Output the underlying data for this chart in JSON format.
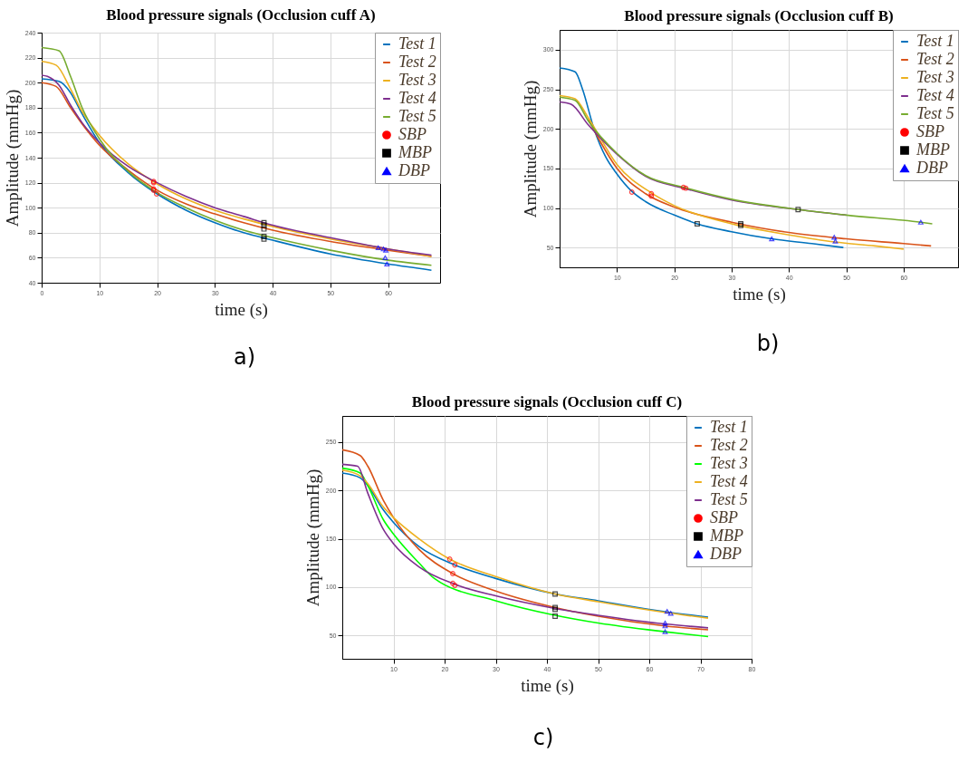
{
  "chart_data": [
    {
      "type": "line",
      "title": "Blood pressure signals (Occlusion cuff A)",
      "xlabel": "time (s)",
      "ylabel": "Amplitude (mmHg)",
      "xlim": [
        0,
        69
      ],
      "xticks": [
        0,
        10,
        20,
        30,
        40,
        50,
        60
      ],
      "ylim": [
        40,
        240
      ],
      "yticks": [
        40,
        60,
        80,
        100,
        120,
        140,
        160,
        180,
        200,
        220,
        240
      ],
      "grid": true,
      "legend": "top right",
      "annotations": [
        "a)"
      ],
      "series": [
        {
          "name": "Test 1",
          "color": "#0072bd",
          "x": [
            0,
            3,
            5,
            7,
            10,
            15,
            20,
            25,
            30,
            35,
            40,
            50,
            60,
            67.5
          ],
          "values": [
            203,
            201,
            192,
            175,
            152,
            128,
            111,
            98,
            88,
            80,
            74,
            63,
            55,
            50
          ]
        },
        {
          "name": "Test 2",
          "color": "#d95319",
          "x": [
            0,
            2.5,
            5,
            7,
            10,
            15,
            20,
            25,
            30,
            35,
            40,
            50,
            60,
            67.5
          ],
          "values": [
            200,
            197,
            180,
            167,
            150,
            130,
            114,
            103,
            95,
            88,
            82,
            73,
            66,
            61
          ]
        },
        {
          "name": "Test 3",
          "color": "#edb120",
          "x": [
            0,
            2.5,
            5,
            7,
            10,
            15,
            20,
            25,
            30,
            35,
            40,
            50,
            60,
            67.5
          ],
          "values": [
            217,
            214,
            195,
            177,
            158,
            135,
            119,
            107,
            98,
            91,
            85,
            75,
            67,
            61
          ]
        },
        {
          "name": "Test 4",
          "color": "#7e2f8e",
          "x": [
            0,
            1,
            3,
            5,
            7,
            10,
            15,
            20,
            25,
            30,
            35,
            40,
            50,
            60,
            67.5
          ],
          "values": [
            206,
            205,
            198,
            182,
            168,
            152,
            133,
            120,
            109,
            100,
            93,
            86,
            76,
            67,
            62
          ]
        },
        {
          "name": "Test 5",
          "color": "#77ac30",
          "x": [
            0,
            3,
            5,
            7,
            10,
            15,
            20,
            25,
            30,
            35,
            40,
            50,
            60,
            67.5
          ],
          "values": [
            228,
            225.5,
            205,
            180,
            155,
            129,
            112,
            100,
            90,
            82,
            76,
            66,
            58,
            54
          ]
        },
        {
          "name": "SBP",
          "type": "scatter",
          "marker": "circle",
          "color": "#ff0000",
          "x": [
            19.4,
            19.4,
            19.4,
            19.4,
            19.9
          ],
          "values": [
            121,
            120,
            115,
            114,
            111
          ]
        },
        {
          "name": "MBP",
          "type": "scatter",
          "marker": "square",
          "color": "#000000",
          "x": [
            38.5,
            38.5,
            38.5,
            38.5,
            38.5
          ],
          "values": [
            88,
            86,
            83,
            77,
            75
          ]
        },
        {
          "name": "DBP",
          "type": "scatter",
          "marker": "triangle",
          "color": "#0000ff",
          "x": [
            58.3,
            59.2,
            59.6,
            59.5,
            59.8
          ],
          "values": [
            68,
            67,
            66,
            60,
            55
          ]
        }
      ]
    },
    {
      "type": "line",
      "title": "Blood pressure signals (Occlusion cuff B)",
      "xlabel": "time (s)",
      "ylabel": "Amplitude (mmHg)",
      "xlim": [
        0,
        69.5
      ],
      "xticks": [
        10,
        20,
        30,
        40,
        50,
        60
      ],
      "ylim": [
        25,
        325
      ],
      "yticks": [
        50,
        100,
        150,
        200,
        250,
        300
      ],
      "grid": true,
      "legend": "top right",
      "annotations": [
        "b)"
      ],
      "series": [
        {
          "name": "Test 1",
          "color": "#0072bd",
          "x": [
            0,
            2.7,
            4,
            6,
            8,
            10,
            12.6,
            15,
            20,
            24,
            30,
            37,
            44,
            49.5
          ],
          "values": [
            277,
            272,
            250,
            200,
            165,
            143,
            121,
            108,
            91,
            80,
            70,
            61,
            55,
            50
          ]
        },
        {
          "name": "Test 2",
          "color": "#d95319",
          "x": [
            5,
            7,
            10,
            15,
            20,
            30,
            40,
            50,
            60,
            64.8
          ],
          "values": [
            212,
            185,
            150,
            118,
            101,
            82,
            69,
            61,
            55,
            52
          ]
        },
        {
          "name": "Test 3",
          "color": "#edb120",
          "x": [
            0,
            2.7,
            5,
            10,
            16,
            20,
            30,
            40,
            48,
            55,
            60
          ],
          "values": [
            242,
            238,
            214,
            155,
            119,
            103,
            80,
            66,
            57,
            52,
            48
          ]
        },
        {
          "name": "Test 4",
          "color": "#7e2f8e",
          "x": [
            0,
            2,
            5,
            10,
            15,
            21.7,
            30,
            41.6,
            50
          ],
          "values": [
            234,
            231,
            205,
            168,
            140,
            125,
            110,
            98,
            91
          ]
        },
        {
          "name": "Test 5",
          "color": "#77ac30",
          "x": [
            0,
            2.7,
            5,
            10,
            15,
            21.7,
            30,
            41.6,
            50,
            63,
            65
          ],
          "values": [
            240,
            236,
            210,
            169,
            141,
            126,
            111,
            98,
            91,
            82,
            80
          ]
        },
        {
          "name": "SBP",
          "type": "scatter",
          "marker": "circle",
          "color": "#ff0000",
          "x": [
            12.6,
            16,
            16,
            21.6,
            22
          ],
          "values": [
            120,
            118,
            115,
            126,
            125
          ]
        },
        {
          "name": "MBP",
          "type": "scatter",
          "marker": "square",
          "color": "#000000",
          "x": [
            24,
            31.6,
            31.6,
            41.6
          ],
          "values": [
            80,
            80,
            78,
            98
          ]
        },
        {
          "name": "DBP",
          "type": "scatter",
          "marker": "triangle",
          "color": "#0000ff",
          "x": [
            37,
            47.9,
            48.1,
            63
          ],
          "values": [
            61,
            63,
            58,
            82
          ]
        }
      ]
    },
    {
      "type": "line",
      "title": "Blood pressure signals (Occlusion cuff C)",
      "xlabel": "time (s)",
      "ylabel": "Amplitude (mmHg)",
      "xlim": [
        0,
        80
      ],
      "xticks": [
        10,
        20,
        30,
        40,
        50,
        60,
        70,
        80
      ],
      "ylim": [
        26,
        277
      ],
      "yticks": [
        50,
        100,
        150,
        200,
        250
      ],
      "grid": true,
      "legend": "top right",
      "annotations": [
        "c)"
      ],
      "series": [
        {
          "name": "Test 1",
          "color": "#0072bd",
          "x": [
            0,
            3.5,
            5,
            8,
            10,
            15,
            22,
            30,
            41.6,
            50,
            60,
            64,
            71.5
          ],
          "values": [
            218,
            213,
            205,
            180,
            167,
            142,
            123,
            109,
            93,
            86,
            77,
            74,
            69
          ]
        },
        {
          "name": "Test 2",
          "color": "#d95319",
          "x": [
            0,
            3.5,
            5,
            8,
            10,
            15,
            21.6,
            30,
            41.6,
            50,
            63,
            71.5
          ],
          "values": [
            242,
            236,
            225,
            190,
            172,
            139,
            114,
            96,
            79,
            70,
            60,
            56
          ]
        },
        {
          "name": "Test 3",
          "color": "#00ff00",
          "x": [
            0,
            3.5,
            5,
            8,
            10,
            15,
            18,
            30,
            41.6,
            50,
            63,
            71.5
          ],
          "values": [
            223,
            218,
            205,
            170,
            155,
            125,
            109,
            86,
            71,
            63,
            54,
            49
          ]
        },
        {
          "name": "Test 4",
          "color": "#edb120",
          "x": [
            0,
            3.5,
            5,
            8,
            10,
            15,
            21,
            30,
            41.6,
            50,
            63,
            71.5
          ],
          "values": [
            221,
            215,
            207,
            183,
            172,
            150,
            129,
            111,
            93,
            85,
            74,
            68
          ]
        },
        {
          "name": "Test 5",
          "color": "#7e2f8e",
          "x": [
            0,
            3,
            5,
            8,
            10,
            15,
            22,
            30,
            41.6,
            50,
            63,
            71.5
          ],
          "values": [
            227,
            225,
            197,
            160,
            145,
            121,
            103,
            91,
            78,
            71,
            62,
            58
          ]
        },
        {
          "name": "SBP",
          "type": "scatter",
          "marker": "circle",
          "color": "#ff0000",
          "x": [
            21,
            22,
            21.6,
            21.6,
            22
          ],
          "values": [
            129,
            123,
            114,
            104,
            102
          ]
        },
        {
          "name": "MBP",
          "type": "scatter",
          "marker": "square",
          "color": "#000000",
          "x": [
            41.6,
            41.6,
            41.6,
            41.6
          ],
          "values": [
            93,
            79,
            77,
            70
          ]
        },
        {
          "name": "DBP",
          "type": "scatter",
          "marker": "triangle",
          "color": "#0000ff",
          "x": [
            63.5,
            64.2,
            63.1,
            63.1,
            63.1
          ],
          "values": [
            75,
            73,
            63,
            60,
            54
          ]
        }
      ]
    }
  ]
}
